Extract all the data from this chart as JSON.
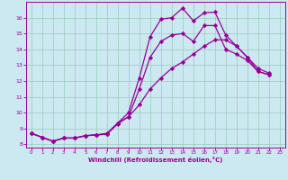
{
  "xlabel": "Windchill (Refroidissement éolien,°C)",
  "background_color": "#cce8f0",
  "grid_color": "#99ccbb",
  "line_color": "#990099",
  "marker": "D",
  "markersize": 2.2,
  "linewidth": 0.9,
  "xlim": [
    -0.5,
    23.5
  ],
  "ylim": [
    7.8,
    17.0
  ],
  "xticks": [
    0,
    1,
    2,
    3,
    4,
    5,
    6,
    7,
    8,
    9,
    10,
    11,
    12,
    13,
    14,
    15,
    16,
    17,
    18,
    19,
    20,
    21,
    22,
    23
  ],
  "yticks": [
    8,
    9,
    10,
    11,
    12,
    13,
    14,
    15,
    16
  ],
  "series": [
    [
      8.7,
      8.45,
      8.2,
      8.4,
      8.4,
      8.55,
      8.6,
      8.7,
      9.35,
      10.0,
      12.2,
      14.8,
      15.9,
      16.0,
      16.6,
      15.8,
      16.3,
      16.35,
      14.9,
      14.2,
      13.5,
      12.8,
      12.5
    ],
    [
      8.7,
      8.45,
      8.2,
      8.4,
      8.4,
      8.55,
      8.6,
      8.65,
      9.35,
      9.75,
      11.5,
      13.5,
      14.5,
      14.9,
      15.0,
      14.5,
      15.5,
      15.5,
      14.0,
      13.7,
      13.3,
      12.6,
      12.4
    ],
    [
      8.7,
      8.45,
      8.2,
      8.4,
      8.4,
      8.55,
      8.6,
      8.65,
      9.3,
      9.75,
      10.5,
      11.5,
      12.2,
      12.8,
      13.2,
      13.7,
      14.2,
      14.6,
      14.6,
      14.2,
      13.5,
      12.6,
      12.4
    ]
  ]
}
